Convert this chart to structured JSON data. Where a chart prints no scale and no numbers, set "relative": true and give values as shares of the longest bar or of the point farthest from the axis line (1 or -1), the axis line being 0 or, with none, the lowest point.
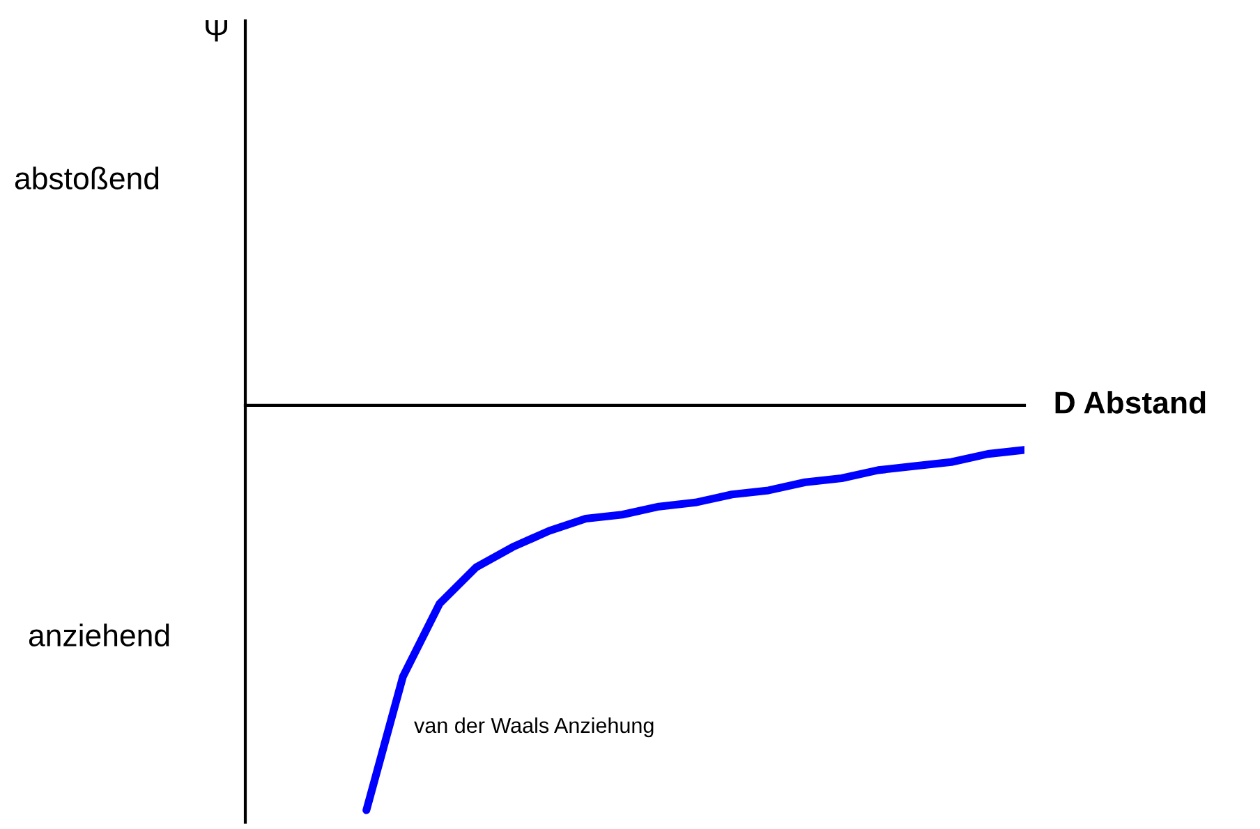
{
  "chart_data": {
    "type": "line",
    "relative": true,
    "xlabel": "D Abstand",
    "annotations": [
      "Ψ",
      "abstoßend",
      "anziehend",
      "van der Waals Anziehung"
    ],
    "categories": [
      null,
      null,
      null,
      null,
      null,
      null,
      null,
      null,
      null,
      null,
      null,
      null,
      null,
      null,
      null,
      null,
      null,
      null,
      null
    ],
    "series": [
      {
        "color": "#0000ff",
        "values": [
          -1,
          -0.67,
          -0.49,
          -0.4,
          -0.35,
          -0.31,
          -0.28,
          -0.27,
          -0.25,
          -0.24,
          -0.22,
          -0.21,
          -0.19,
          -0.18,
          -0.16,
          -0.15,
          -0.14,
          -0.12,
          -0.11
        ]
      }
    ]
  }
}
